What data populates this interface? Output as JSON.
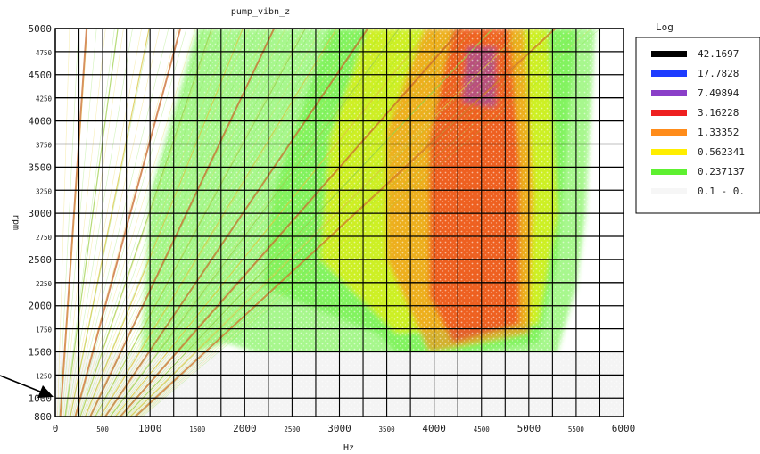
{
  "chart_data": {
    "type": "heatmap",
    "title": "pump_vibn_z",
    "xlabel": "Hz",
    "ylabel": "rpm",
    "xlim": [
      0,
      6000
    ],
    "ylim": [
      800,
      5000
    ],
    "grid": true,
    "x_ticks_major": [
      "0",
      "1000",
      "2000",
      "3000",
      "4000",
      "5000",
      "6000"
    ],
    "x_ticks_minor": [
      "500",
      "1500",
      "2500",
      "3500",
      "4500",
      "5500"
    ],
    "y_ticks_major": [
      "800",
      "1000",
      "1500",
      "2000",
      "2500",
      "3000",
      "3500",
      "4000",
      "4500",
      "5000"
    ],
    "y_ticks_minor": [
      "1250",
      "1750",
      "2250",
      "2750",
      "3250",
      "3750",
      "4250",
      "4750"
    ],
    "legend": {
      "title": "Log",
      "placement": "right",
      "entries": [
        {
          "label": "42.1697",
          "color": "#000000"
        },
        {
          "label": "17.7828",
          "color": "#1e3cff"
        },
        {
          "label": "7.49894",
          "color": "#8a3fc8"
        },
        {
          "label": "3.16228",
          "color": "#ee2020"
        },
        {
          "label": "1.33352",
          "color": "#ff8c1a"
        },
        {
          "label": "0.562341",
          "color": "#ffee00"
        },
        {
          "label": "0.237137",
          "color": "#5ef030"
        },
        {
          "label": "0.1 - 0.",
          "color": "#f6f6f6"
        }
      ]
    },
    "colors": {
      "noise_floor": "#f4f4f4",
      "low": "#5ef030",
      "mid": "#ffee00",
      "high": "#ff8c1a",
      "peak": "#ee2020",
      "extreme": "#8a3fc8"
    },
    "order_lines": {
      "description_values_hz_at_5000rpm": [
        330,
        660,
        990,
        1320,
        1650,
        1980,
        2310,
        2640,
        2970,
        3300,
        3630,
        3960,
        4290,
        4620,
        4950,
        5280
      ]
    },
    "resonance_bands": [
      {
        "x_range": [
          3950,
          4950
        ],
        "y_range": [
          1500,
          5000
        ],
        "level": "peak"
      },
      {
        "x_range": [
          3500,
          5200
        ],
        "y_range": [
          1200,
          5000
        ],
        "level": "mid"
      },
      {
        "x_range": [
          1000,
          5500
        ],
        "y_range": [
          1300,
          5000
        ],
        "level": "low"
      }
    ]
  }
}
